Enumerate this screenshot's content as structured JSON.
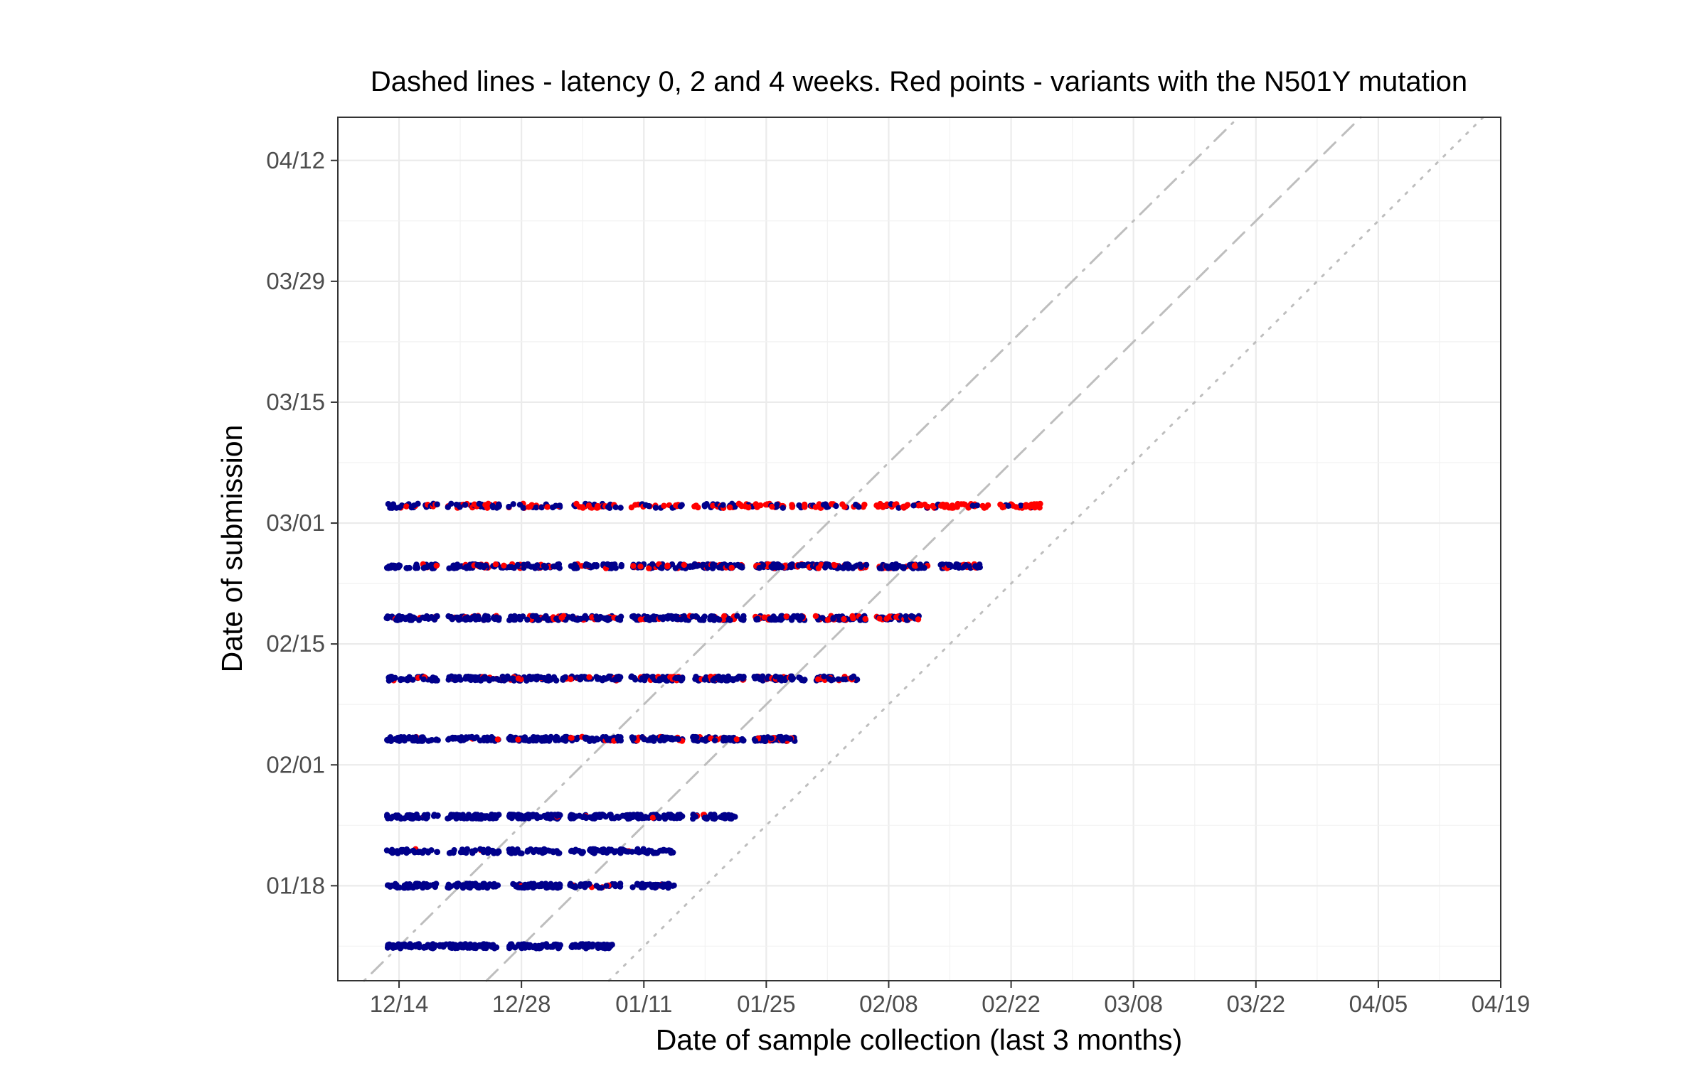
{
  "chart_data": {
    "type": "scatter",
    "title": "Dashed lines - latency 0, 2 and 4 weeks. Red points - variants with the N501Y mutation",
    "xlabel": "Date of sample collection (last 3 months)",
    "ylabel": "Date of submission",
    "xlim": [
      "12/07",
      "04/19"
    ],
    "ylim": [
      "01/07",
      "04/17"
    ],
    "x_tick_labels": [
      "12/14",
      "12/28",
      "01/11",
      "01/25",
      "02/08",
      "02/22",
      "03/08",
      "03/22",
      "04/05",
      "04/19"
    ],
    "y_tick_labels": [
      "01/18",
      "02/01",
      "02/15",
      "03/01",
      "03/15",
      "03/29",
      "04/12"
    ],
    "grid": true,
    "colors": {
      "other_variants": "#00008B",
      "n501y_variants": "#FF0000",
      "reference_lines": "#BEBEBE",
      "grid": "#EBEBEB",
      "panel_border": "#333333"
    },
    "reference_lines": [
      {
        "latency_weeks": 0,
        "style": "dotted"
      },
      {
        "latency_weeks": 2,
        "style": "dashed"
      },
      {
        "latency_weeks": 4,
        "style": "dotdash"
      }
    ],
    "submission_batches": [
      {
        "submission": "01/11",
        "collection_from": "12/13",
        "collection_to": "01/07",
        "n501y_share": 0.0,
        "density": 1.0
      },
      {
        "submission": "01/18",
        "collection_from": "12/13",
        "collection_to": "01/14",
        "n501y_share": 0.02,
        "density": 0.8
      },
      {
        "submission": "01/22",
        "collection_from": "12/13",
        "collection_to": "01/14",
        "n501y_share": 0.03,
        "density": 0.6
      },
      {
        "submission": "01/26",
        "collection_from": "12/13",
        "collection_to": "01/21",
        "n501y_share": 0.03,
        "density": 0.8
      },
      {
        "submission": "02/04",
        "collection_from": "12/13",
        "collection_to": "01/28",
        "n501y_share": 0.08,
        "density": 0.8
      },
      {
        "submission": "02/11",
        "collection_from": "12/13",
        "collection_to": "02/04",
        "n501y_share": 0.15,
        "density": 0.7
      },
      {
        "submission": "02/18",
        "collection_from": "12/13",
        "collection_to": "02/11",
        "n501y_share": 0.18,
        "density": 0.8
      },
      {
        "submission": "02/24",
        "collection_from": "12/13",
        "collection_to": "02/18",
        "n501y_share": 0.22,
        "density": 0.8
      },
      {
        "submission": "03/03",
        "collection_from": "12/13",
        "collection_to": "02/25",
        "n501y_share": 0.55,
        "density": 0.5
      }
    ]
  }
}
